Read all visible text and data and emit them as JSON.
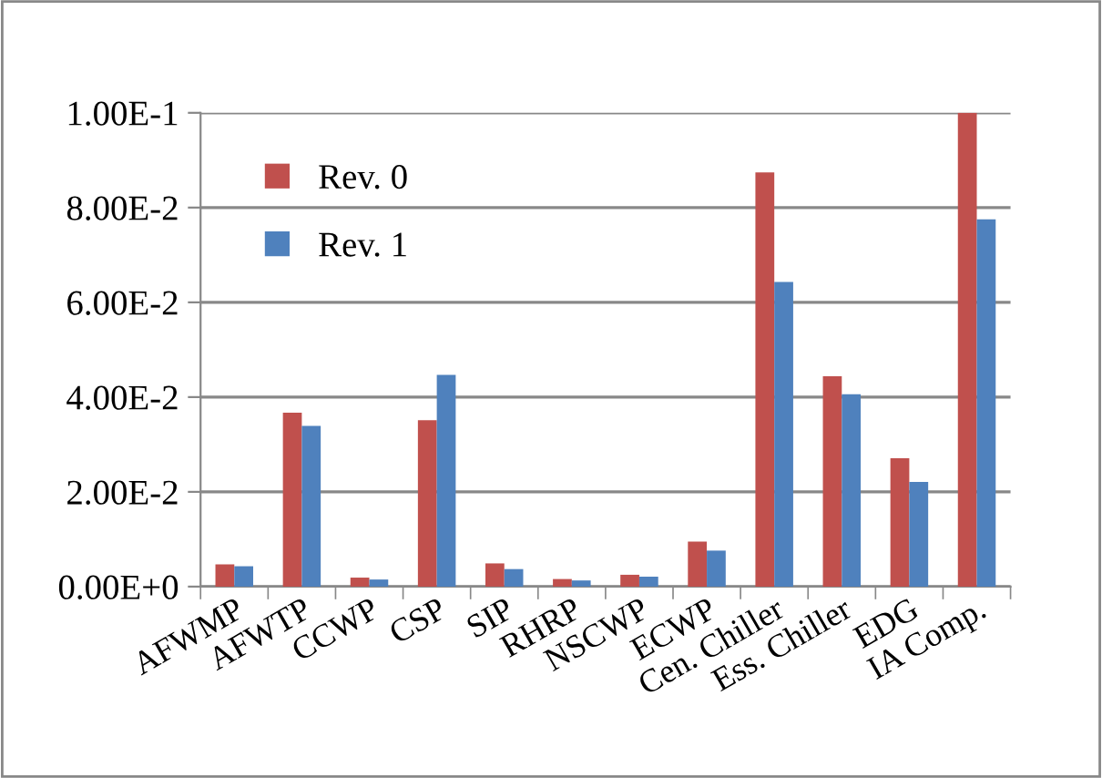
{
  "chart_data": {
    "type": "bar",
    "categories": [
      "AFWMP",
      "AFWTP",
      "CCWP",
      "CSP",
      "SIP",
      "RHRP",
      "NSCWP",
      "ECWP",
      "Cen. Chiller",
      "Ess. Chiller",
      "EDG",
      "IA Comp."
    ],
    "series": [
      {
        "name": "Rev. 0",
        "color": "#c0504d",
        "values": [
          0.0047,
          0.0367,
          0.0019,
          0.0351,
          0.0049,
          0.0016,
          0.0025,
          0.0095,
          0.0874,
          0.0444,
          0.0271,
          0.1
        ]
      },
      {
        "name": "Rev. 1",
        "color": "#4f81bd",
        "values": [
          0.0043,
          0.0339,
          0.0015,
          0.0447,
          0.0037,
          0.0013,
          0.0021,
          0.0076,
          0.0643,
          0.0406,
          0.0221,
          0.0775
        ]
      }
    ],
    "ylim": [
      0,
      0.1
    ],
    "yticks": [
      {
        "value": 0,
        "label": "0.00E+0"
      },
      {
        "value": 0.02,
        "label": "2.00E-2"
      },
      {
        "value": 0.04,
        "label": "4.00E-2"
      },
      {
        "value": 0.06,
        "label": "6.00E-2"
      },
      {
        "value": 0.08,
        "label": "8.00E-2"
      },
      {
        "value": 0.1,
        "label": "1.00E-1"
      }
    ],
    "grid": "y",
    "legend": "top left"
  }
}
